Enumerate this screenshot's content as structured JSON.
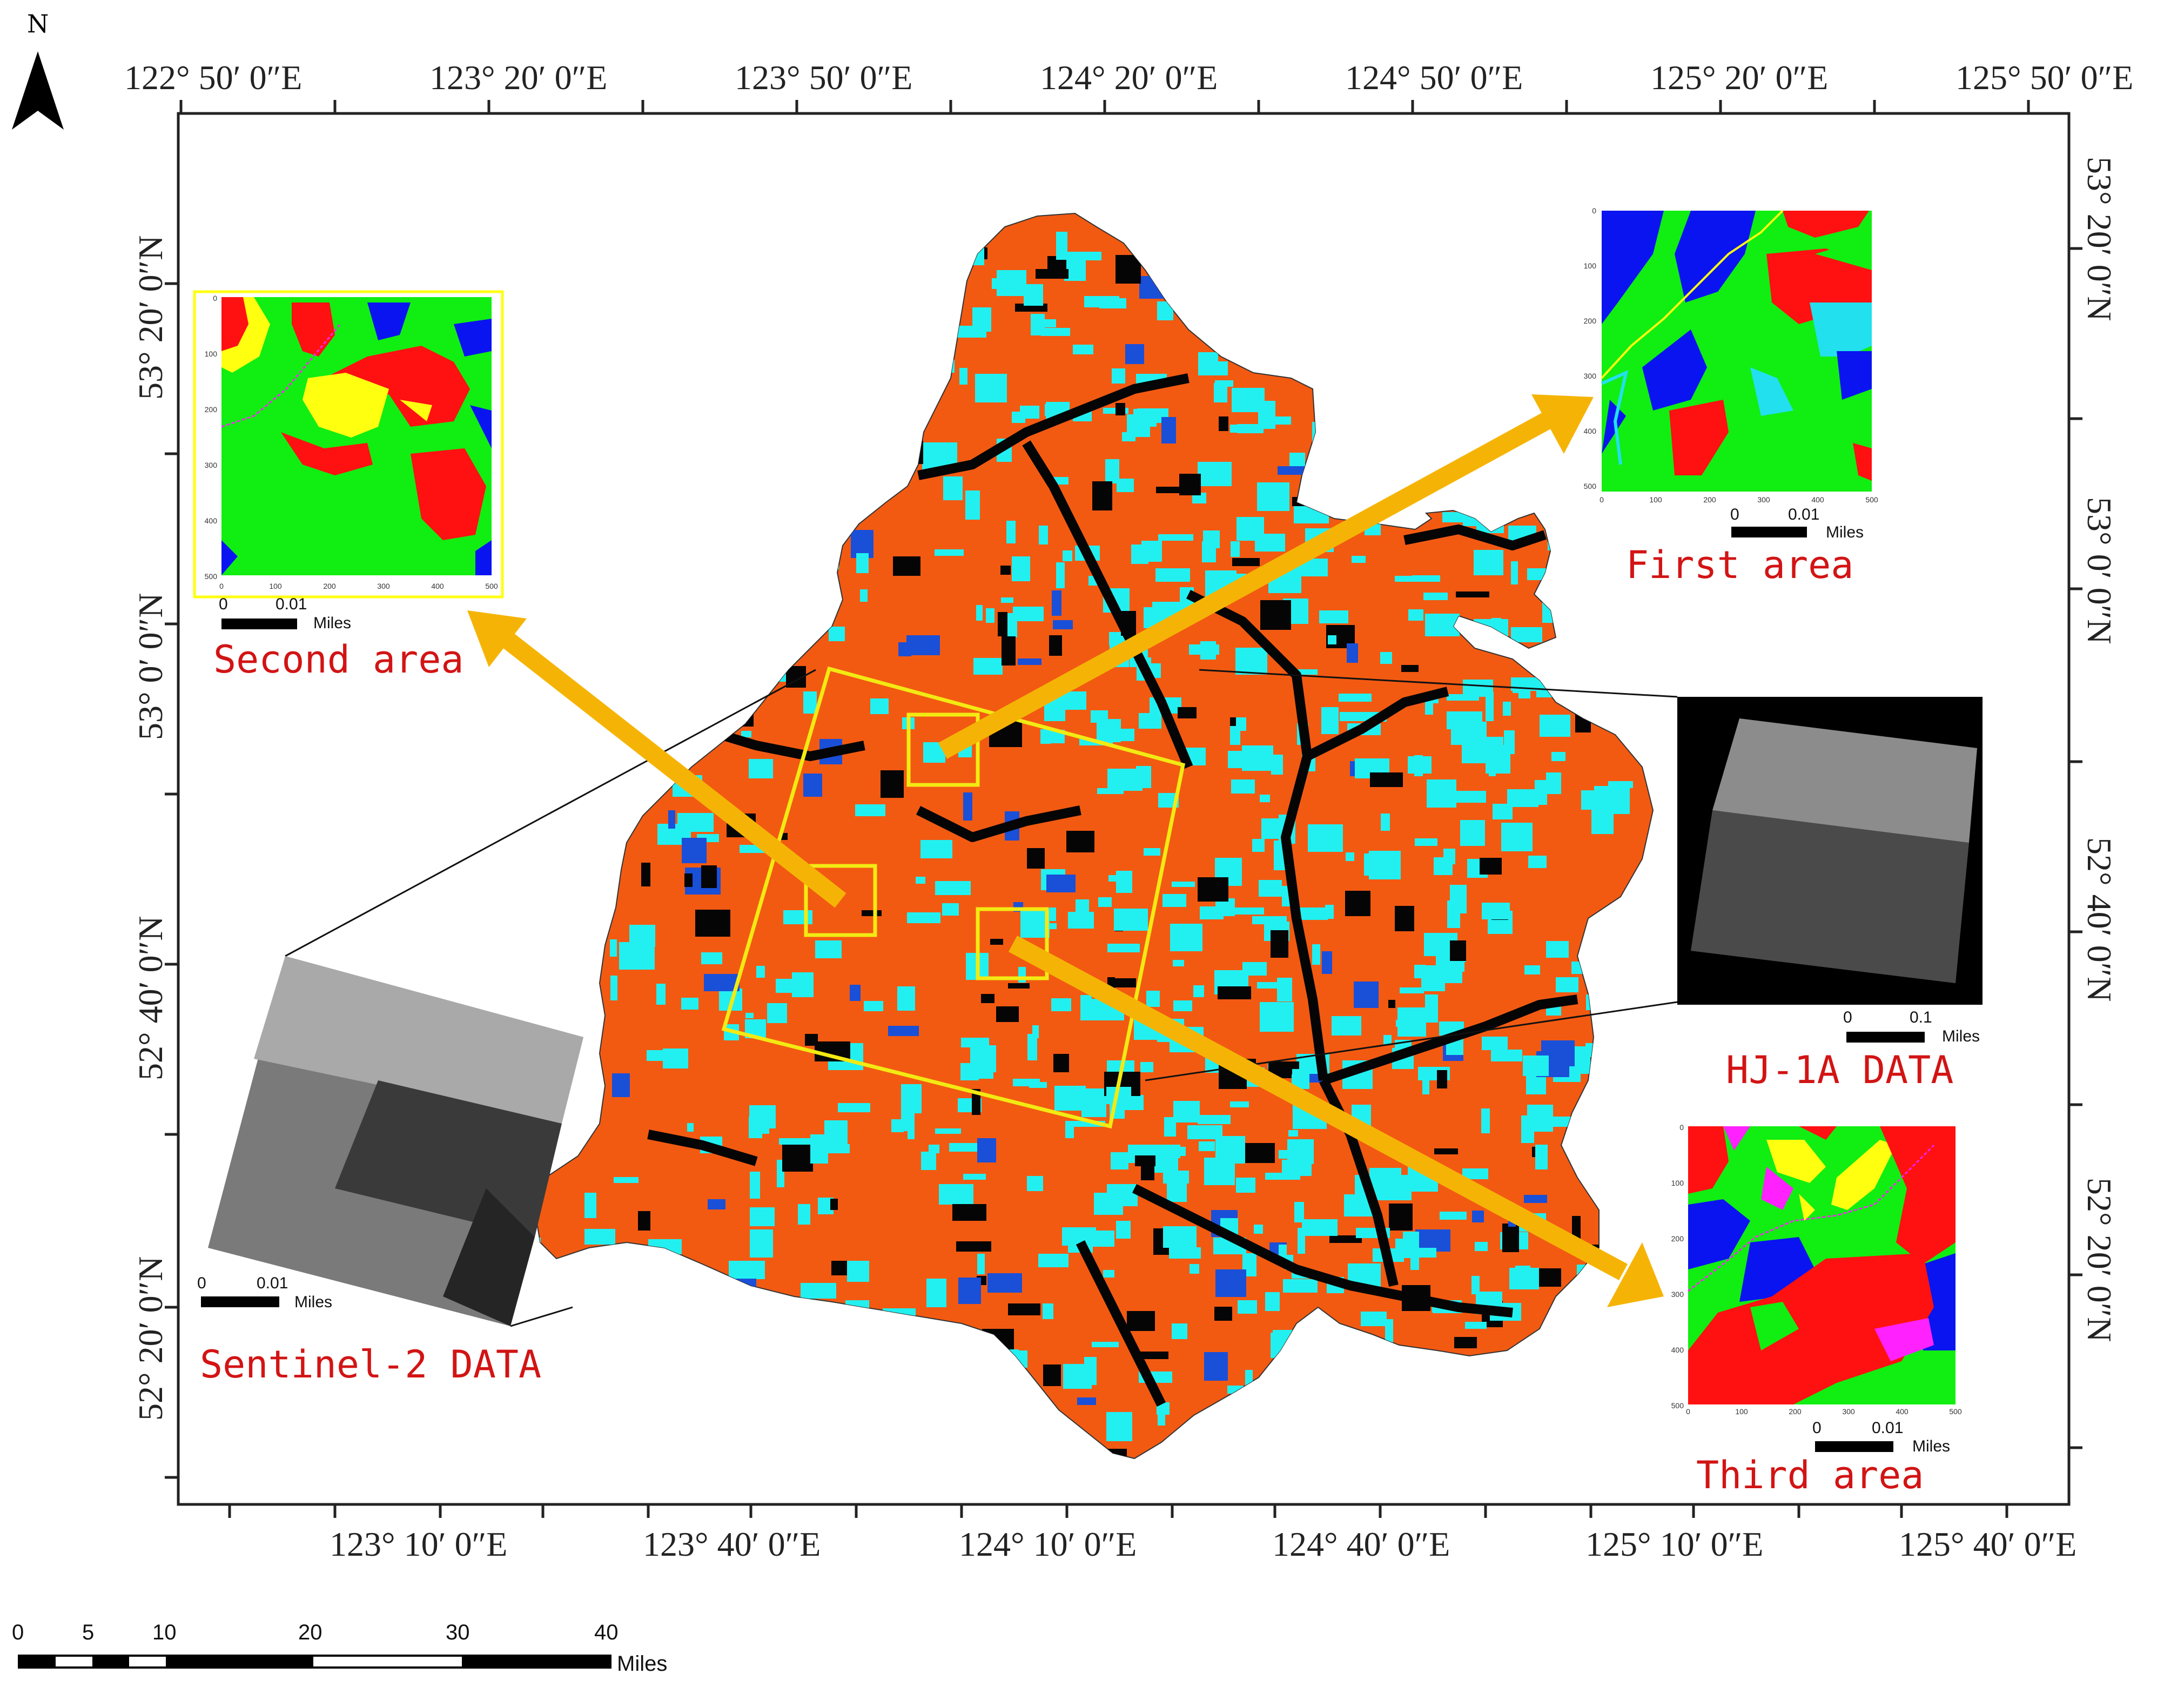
{
  "north": {
    "label": "N",
    "icon": "north-arrow-icon"
  },
  "graticule": {
    "top_labels": [
      "122° 50′ 0″E",
      "123° 20′ 0″E",
      "123° 50′ 0″E",
      "124° 20′ 0″E",
      "124° 50′ 0″E",
      "125° 20′ 0″E",
      "125° 50′ 0″E"
    ],
    "bottom_labels": [
      "123° 10′ 0″E",
      "123° 40′ 0″E",
      "124° 10′ 0″E",
      "124° 40′ 0″E",
      "125° 10′ 0″E",
      "125° 40′ 0″E"
    ],
    "left_labels": [
      "53° 20′ 0″N",
      "53° 0′ 0″N",
      "52° 40′ 0″N",
      "52° 20′ 0″N"
    ],
    "right_labels": [
      "53° 20′ 0″N",
      "53° 0′ 0″N",
      "52° 40′ 0″N",
      "52° 20′ 0″N"
    ]
  },
  "colors": {
    "orange_class": "#f25a12",
    "cyan_class": "#22f0f0",
    "black_class": "#050505",
    "blue_class": "#1a4fd8",
    "study_box": "#f2ea12",
    "arrow": "#f5b405",
    "caption_red": "#d21414",
    "inset_green": "#11ee11",
    "inset_red": "#ff1111",
    "inset_blue": "#0a14f0",
    "inset_yellow": "#ffff10",
    "inset_cyan": "#22e0ee",
    "inset_magenta": "#ff22ff"
  },
  "insets": {
    "first": {
      "caption": "First area",
      "x_ticks": [
        "0",
        "100",
        "200",
        "300",
        "400",
        "500"
      ],
      "y_ticks": [
        "0",
        "100",
        "200",
        "300",
        "400",
        "500"
      ],
      "scale_labels": [
        "0",
        "0.01"
      ],
      "scale_unit": "Miles"
    },
    "second": {
      "caption": "Second area",
      "x_ticks": [
        "0",
        "100",
        "200",
        "300",
        "400",
        "500"
      ],
      "y_ticks": [
        "0",
        "100",
        "200",
        "300",
        "400",
        "500"
      ],
      "scale_labels": [
        "0",
        "0.01"
      ],
      "scale_unit": "Miles"
    },
    "third": {
      "caption": "Third area",
      "x_ticks": [
        "0",
        "100",
        "200",
        "300",
        "400",
        "500"
      ],
      "y_ticks": [
        "0",
        "100",
        "200",
        "300",
        "400",
        "500"
      ],
      "scale_labels": [
        "0",
        "0.01"
      ],
      "scale_unit": "Miles"
    },
    "hj1a": {
      "caption": "HJ-1A DATA",
      "scale_labels": [
        "0",
        "0.1"
      ],
      "scale_unit": "Miles"
    },
    "sentinel": {
      "caption": "Sentinel-2 DATA",
      "scale_labels": [
        "0",
        "0.01"
      ],
      "scale_unit": "Miles"
    }
  },
  "scale_bar": {
    "labels": [
      "0",
      "5",
      "10",
      "20",
      "30",
      "40"
    ],
    "unit": "Miles"
  }
}
